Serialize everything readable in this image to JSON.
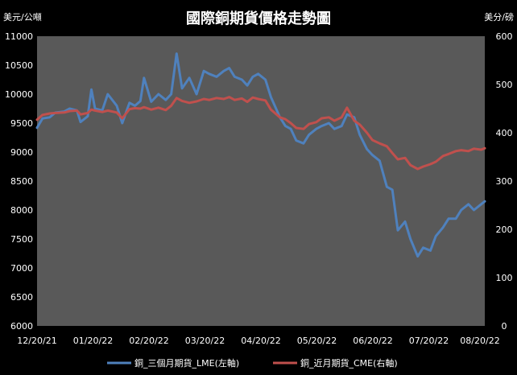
{
  "chart_data": {
    "type": "line",
    "title": "國際銅期貨價格走勢圖",
    "left_unit": "美元/公噸",
    "right_unit": "美分/磅",
    "x_tick_labels": [
      "12/20/21",
      "01/20/22",
      "02/20/22",
      "03/20/22",
      "04/20/22",
      "05/20/22",
      "06/20/22",
      "07/20/22",
      "08/20/22"
    ],
    "x_start": "2021-12-20",
    "x_end": "2022-08-24",
    "y_left_range": [
      6000,
      11000
    ],
    "y_left_ticks": [
      "6000",
      "6500",
      "7000",
      "7500",
      "8000",
      "8500",
      "9000",
      "9500",
      "10000",
      "10500",
      "11000"
    ],
    "y_right_range": [
      0,
      600
    ],
    "y_right_ticks": [
      "0",
      "100",
      "200",
      "300",
      "400",
      "500",
      "600"
    ],
    "background": "#595959",
    "grid": false,
    "legend_position": "bottom",
    "series": [
      {
        "name": "銅_三個月期貨_LME(左軸)",
        "axis": "left",
        "color": "#4F81BD",
        "points": [
          [
            "2021-12-20",
            9420
          ],
          [
            "2021-12-23",
            9580
          ],
          [
            "2021-12-27",
            9600
          ],
          [
            "2021-12-30",
            9680
          ],
          [
            "2022-01-04",
            9700
          ],
          [
            "2022-01-07",
            9750
          ],
          [
            "2022-01-11",
            9720
          ],
          [
            "2022-01-13",
            9520
          ],
          [
            "2022-01-17",
            9620
          ],
          [
            "2022-01-19",
            10080
          ],
          [
            "2022-01-21",
            9750
          ],
          [
            "2022-01-25",
            9720
          ],
          [
            "2022-01-28",
            10000
          ],
          [
            "2022-02-02",
            9800
          ],
          [
            "2022-02-05",
            9500
          ],
          [
            "2022-02-09",
            9850
          ],
          [
            "2022-02-12",
            9800
          ],
          [
            "2022-02-15",
            9880
          ],
          [
            "2022-02-17",
            10280
          ],
          [
            "2022-02-21",
            9870
          ],
          [
            "2022-02-25",
            10000
          ],
          [
            "2022-03-01",
            9900
          ],
          [
            "2022-03-04",
            10000
          ],
          [
            "2022-03-07",
            10700
          ],
          [
            "2022-03-10",
            10100
          ],
          [
            "2022-03-14",
            10280
          ],
          [
            "2022-03-18",
            10000
          ],
          [
            "2022-03-22",
            10400
          ],
          [
            "2022-03-25",
            10350
          ],
          [
            "2022-03-29",
            10300
          ],
          [
            "2022-04-02",
            10400
          ],
          [
            "2022-04-05",
            10450
          ],
          [
            "2022-04-08",
            10300
          ],
          [
            "2022-04-12",
            10250
          ],
          [
            "2022-04-15",
            10150
          ],
          [
            "2022-04-18",
            10300
          ],
          [
            "2022-04-21",
            10350
          ],
          [
            "2022-04-25",
            10250
          ],
          [
            "2022-04-28",
            9950
          ],
          [
            "2022-05-03",
            9600
          ],
          [
            "2022-05-06",
            9450
          ],
          [
            "2022-05-09",
            9400
          ],
          [
            "2022-05-12",
            9200
          ],
          [
            "2022-05-16",
            9150
          ],
          [
            "2022-05-19",
            9300
          ],
          [
            "2022-05-23",
            9400
          ],
          [
            "2022-05-26",
            9450
          ],
          [
            "2022-05-30",
            9500
          ],
          [
            "2022-06-02",
            9400
          ],
          [
            "2022-06-06",
            9450
          ],
          [
            "2022-06-09",
            9650
          ],
          [
            "2022-06-13",
            9600
          ],
          [
            "2022-06-16",
            9300
          ],
          [
            "2022-06-20",
            9050
          ],
          [
            "2022-06-23",
            8950
          ],
          [
            "2022-06-27",
            8850
          ],
          [
            "2022-07-01",
            8400
          ],
          [
            "2022-07-04",
            8350
          ],
          [
            "2022-07-07",
            7650
          ],
          [
            "2022-07-11",
            7800
          ],
          [
            "2022-07-14",
            7500
          ],
          [
            "2022-07-18",
            7200
          ],
          [
            "2022-07-21",
            7350
          ],
          [
            "2022-07-25",
            7300
          ],
          [
            "2022-07-28",
            7550
          ],
          [
            "2022-08-01",
            7700
          ],
          [
            "2022-08-04",
            7850
          ],
          [
            "2022-08-08",
            7850
          ],
          [
            "2022-08-11",
            8000
          ],
          [
            "2022-08-15",
            8100
          ],
          [
            "2022-08-18",
            8000
          ],
          [
            "2022-08-22",
            8100
          ],
          [
            "2022-08-24",
            8150
          ]
        ]
      },
      {
        "name": "銅_近月期貨_CME(右軸)",
        "axis": "right",
        "color": "#C0504D",
        "points": [
          [
            "2021-12-20",
            427
          ],
          [
            "2021-12-23",
            437
          ],
          [
            "2021-12-27",
            440
          ],
          [
            "2021-12-30",
            441
          ],
          [
            "2022-01-04",
            442
          ],
          [
            "2022-01-07",
            445
          ],
          [
            "2022-01-11",
            446
          ],
          [
            "2022-01-13",
            438
          ],
          [
            "2022-01-17",
            441
          ],
          [
            "2022-01-19",
            448
          ],
          [
            "2022-01-21",
            446
          ],
          [
            "2022-01-25",
            443
          ],
          [
            "2022-01-28",
            446
          ],
          [
            "2022-02-02",
            442
          ],
          [
            "2022-02-05",
            430
          ],
          [
            "2022-02-09",
            449
          ],
          [
            "2022-02-12",
            451
          ],
          [
            "2022-02-15",
            450
          ],
          [
            "2022-02-17",
            453
          ],
          [
            "2022-02-21",
            448
          ],
          [
            "2022-02-25",
            452
          ],
          [
            "2022-03-01",
            447
          ],
          [
            "2022-03-04",
            456
          ],
          [
            "2022-03-07",
            472
          ],
          [
            "2022-03-10",
            466
          ],
          [
            "2022-03-14",
            462
          ],
          [
            "2022-03-18",
            465
          ],
          [
            "2022-03-22",
            470
          ],
          [
            "2022-03-25",
            468
          ],
          [
            "2022-03-29",
            472
          ],
          [
            "2022-04-02",
            470
          ],
          [
            "2022-04-05",
            474
          ],
          [
            "2022-04-08",
            468
          ],
          [
            "2022-04-12",
            471
          ],
          [
            "2022-04-15",
            464
          ],
          [
            "2022-04-18",
            473
          ],
          [
            "2022-04-21",
            470
          ],
          [
            "2022-04-25",
            467
          ],
          [
            "2022-04-28",
            448
          ],
          [
            "2022-05-03",
            432
          ],
          [
            "2022-05-06",
            428
          ],
          [
            "2022-05-09",
            420
          ],
          [
            "2022-05-12",
            410
          ],
          [
            "2022-05-16",
            408
          ],
          [
            "2022-05-19",
            418
          ],
          [
            "2022-05-23",
            422
          ],
          [
            "2022-05-26",
            430
          ],
          [
            "2022-05-30",
            432
          ],
          [
            "2022-06-02",
            425
          ],
          [
            "2022-06-06",
            432
          ],
          [
            "2022-06-09",
            452
          ],
          [
            "2022-06-13",
            425
          ],
          [
            "2022-06-16",
            417
          ],
          [
            "2022-06-20",
            400
          ],
          [
            "2022-06-23",
            385
          ],
          [
            "2022-06-27",
            378
          ],
          [
            "2022-07-01",
            372
          ],
          [
            "2022-07-04",
            358
          ],
          [
            "2022-07-07",
            345
          ],
          [
            "2022-07-11",
            348
          ],
          [
            "2022-07-14",
            333
          ],
          [
            "2022-07-18",
            325
          ],
          [
            "2022-07-21",
            330
          ],
          [
            "2022-07-25",
            335
          ],
          [
            "2022-07-28",
            340
          ],
          [
            "2022-08-01",
            352
          ],
          [
            "2022-08-04",
            356
          ],
          [
            "2022-08-08",
            362
          ],
          [
            "2022-08-11",
            364
          ],
          [
            "2022-08-15",
            362
          ],
          [
            "2022-08-18",
            367
          ],
          [
            "2022-08-22",
            365
          ],
          [
            "2022-08-24",
            368
          ]
        ]
      }
    ]
  }
}
